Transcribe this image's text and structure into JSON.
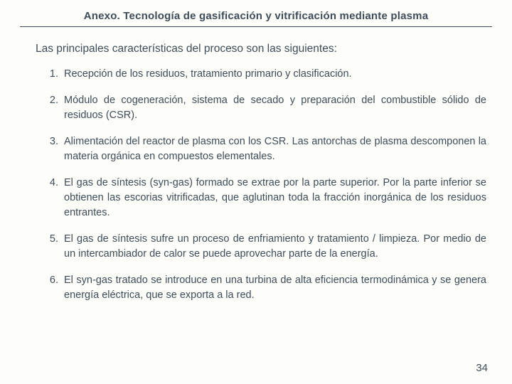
{
  "colors": {
    "background": "#fdfdfa",
    "text": "#3e4d59",
    "rule": "#3e4d59"
  },
  "typography": {
    "header_fontsize": 15,
    "intro_fontsize": 15.5,
    "item_fontsize": 14.5,
    "pagenum_fontsize": 15,
    "line_height": 1.45,
    "font_family": "Trebuchet MS, Verdana, Arial, sans-serif"
  },
  "header": {
    "title": "Anexo. Tecnología de gasificación y vitrificación mediante plasma"
  },
  "intro": "Las principales características del proceso son las siguientes:",
  "items": [
    {
      "n": "1.",
      "text": "Recepción de los residuos, tratamiento primario y clasificación."
    },
    {
      "n": "2.",
      "text": "Módulo de cogeneración, sistema de secado y preparación del combustible sólido de residuos (CSR)."
    },
    {
      "n": "3.",
      "text": "Alimentación del reactor de plasma con los CSR. Las antorchas de plasma descomponen la materia orgánica en compuestos elementales."
    },
    {
      "n": "4.",
      "text": "El gas de síntesis (syn-gas) formado se extrae por la parte superior. Por la parte inferior se obtienen las escorias vitrificadas, que aglutinan toda la fracción inorgánica de los residuos entrantes."
    },
    {
      "n": "5.",
      "text": "El gas de síntesis sufre un proceso de enfriamiento y tratamiento / limpieza. Por medio de un intercambiador de calor se puede aprovechar parte de la energía."
    },
    {
      "n": "6.",
      "text": "El syn-gas tratado se introduce en una turbina de alta eficiencia termodinámica y se genera energía eléctrica, que se exporta a la red."
    }
  ],
  "page_number": "34"
}
